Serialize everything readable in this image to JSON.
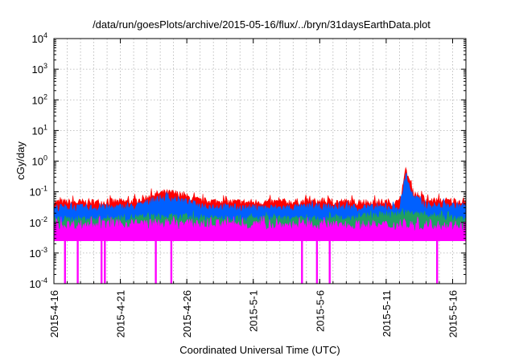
{
  "chart_data": {
    "type": "area",
    "title": "/data/run/goesPlots/archive/2015-05-16/flux/../bryn/31daysEarthData.plot",
    "xlabel": "Coordinated Universal Time (UTC)",
    "ylabel": "cGy/day",
    "y_scale": "log",
    "ylim": [
      0.0001,
      10000
    ],
    "y_ticks": [
      {
        "base": "10",
        "exp": "-4",
        "value": 0.0001
      },
      {
        "base": "10",
        "exp": "-3",
        "value": 0.001
      },
      {
        "base": "10",
        "exp": "-2",
        "value": 0.01
      },
      {
        "base": "10",
        "exp": "-1",
        "value": 0.1
      },
      {
        "base": "10",
        "exp": "0",
        "value": 1
      },
      {
        "base": "10",
        "exp": "1",
        "value": 10
      },
      {
        "base": "10",
        "exp": "2",
        "value": 100
      },
      {
        "base": "10",
        "exp": "3",
        "value": 1000
      },
      {
        "base": "10",
        "exp": "4",
        "value": 10000
      }
    ],
    "xlim": [
      "2015-04-16",
      "2015-05-17"
    ],
    "x_ticks": [
      "2015-4-16",
      "2015-4-21",
      "2015-4-26",
      "2015-5-1",
      "2015-5-6",
      "2015-5-11",
      "2015-5-16"
    ],
    "x_tick_dates": [
      "2015-04-16",
      "2015-04-21",
      "2015-04-26",
      "2015-05-01",
      "2015-05-06",
      "2015-05-11",
      "2015-05-16"
    ],
    "grid": true,
    "series": [
      {
        "color": "#ff0000",
        "x": [
          "2015-04-16",
          "2015-04-19",
          "2015-04-22",
          "2015-04-24",
          "2015-04-25",
          "2015-04-27",
          "2015-04-30",
          "2015-05-03",
          "2015-05-06",
          "2015-05-09",
          "2015-05-12",
          "2015-05-12T12:00",
          "2015-05-13",
          "2015-05-14",
          "2015-05-17"
        ],
        "values": [
          0.045,
          0.045,
          0.048,
          0.09,
          0.09,
          0.05,
          0.045,
          0.045,
          0.048,
          0.045,
          0.045,
          0.55,
          0.1,
          0.05,
          0.05
        ]
      },
      {
        "color": "#0060ff",
        "x": [
          "2015-04-16",
          "2015-04-19",
          "2015-04-22",
          "2015-04-24",
          "2015-04-25",
          "2015-04-27",
          "2015-04-30",
          "2015-05-03",
          "2015-05-06",
          "2015-05-09",
          "2015-05-12",
          "2015-05-12T12:00",
          "2015-05-13",
          "2015-05-14",
          "2015-05-17"
        ],
        "values": [
          0.03,
          0.03,
          0.032,
          0.06,
          0.06,
          0.035,
          0.03,
          0.03,
          0.032,
          0.03,
          0.03,
          0.35,
          0.07,
          0.035,
          0.035
        ]
      },
      {
        "color": "#20a060",
        "x": [
          "2015-04-16",
          "2015-04-24",
          "2015-05-06",
          "2015-05-12T12:00",
          "2015-05-17"
        ],
        "values": [
          0.012,
          0.015,
          0.012,
          0.02,
          0.012
        ]
      },
      {
        "color": "#ff00ff",
        "x": [
          "2015-04-16",
          "2015-04-24",
          "2015-05-06",
          "2015-05-12",
          "2015-05-17"
        ],
        "values": [
          0.008,
          0.009,
          0.008,
          0.008,
          0.008
        ],
        "floor": 0.0025,
        "dropouts": [
          "2015-04-16T20:00",
          "2015-04-17T19:00",
          "2015-04-19T14:00",
          "2015-04-19T20:00",
          "2015-04-23T16:00",
          "2015-04-24T20:00",
          "2015-05-04T16:00",
          "2015-05-05T19:00",
          "2015-05-06T18:00",
          "2015-05-14T20:00"
        ]
      }
    ]
  }
}
